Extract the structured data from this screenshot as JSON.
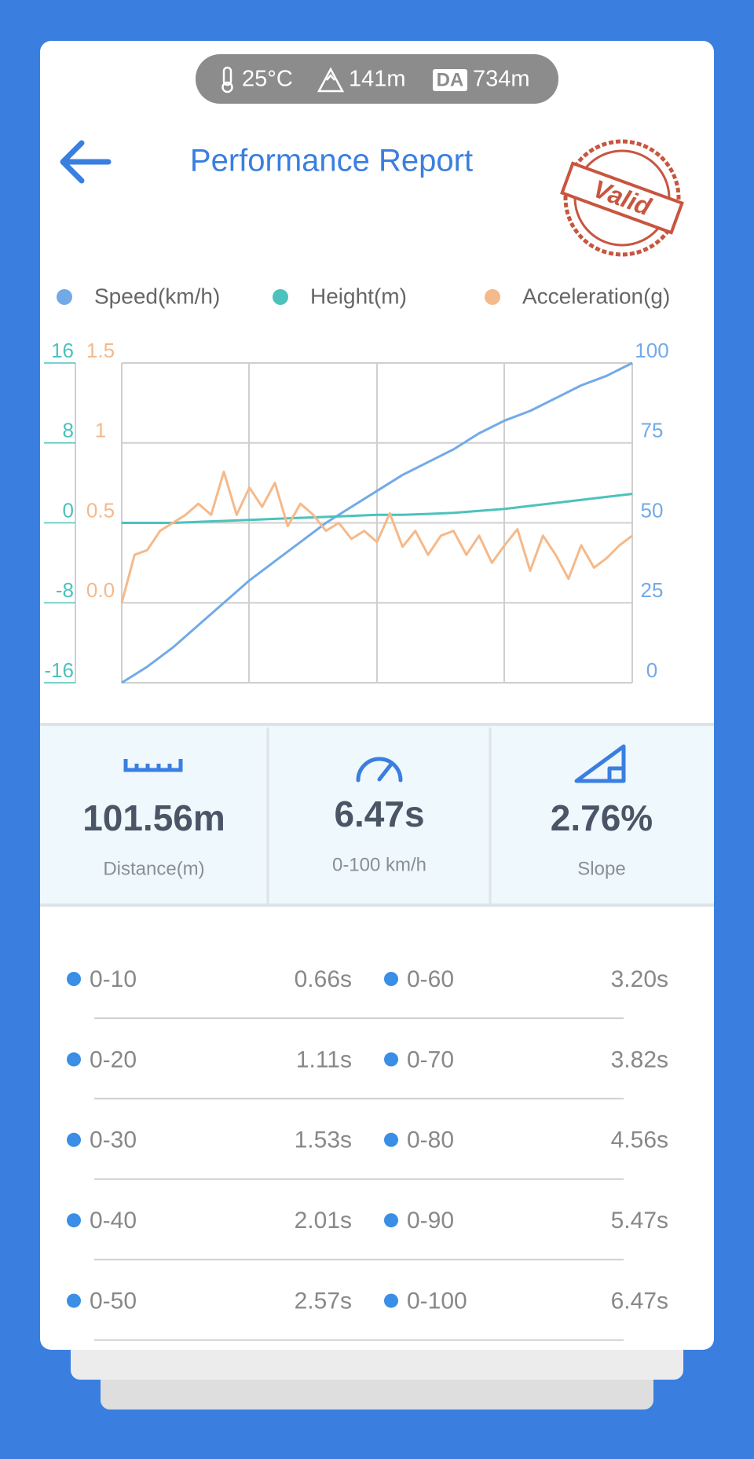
{
  "header": {
    "temperature": "25°C",
    "altitude": "141m",
    "da_badge": "DA",
    "density_altitude": "734m",
    "title": "Performance Report",
    "stamp": "Valid"
  },
  "chart_data": {
    "type": "line",
    "grid": true,
    "series": [
      {
        "name": "Speed(km/h)",
        "color": "#72aae8",
        "axis": "right",
        "ylim": [
          0,
          100
        ],
        "yticks": [
          0,
          25,
          50,
          75,
          100
        ],
        "values": [
          0,
          5,
          11,
          18,
          25,
          32,
          38,
          44,
          50,
          55,
          60,
          65,
          69,
          73,
          78,
          82,
          85,
          89,
          93,
          96,
          100
        ]
      },
      {
        "name": "Height(m)",
        "color": "#4cc2bc",
        "axis": "left",
        "ylim": [
          -16,
          16
        ],
        "yticks": [
          -16,
          -8,
          0,
          8,
          16
        ],
        "values": [
          0,
          0,
          0,
          0.1,
          0.2,
          0.3,
          0.4,
          0.5,
          0.6,
          0.7,
          0.8,
          0.8,
          0.9,
          1.0,
          1.2,
          1.4,
          1.7,
          2.0,
          2.3,
          2.6,
          2.9
        ]
      },
      {
        "name": "Acceleration(g)",
        "color": "#f5b98a",
        "axis": "left-inner",
        "ylim": [
          -0.5,
          1.5
        ],
        "yticks": [
          {
            "value": 0,
            "label": "0.0"
          },
          0.5,
          1,
          1.5
        ],
        "values": [
          0.0,
          0.3,
          0.33,
          0.45,
          0.5,
          0.55,
          0.62,
          0.55,
          0.82,
          0.55,
          0.72,
          0.6,
          0.75,
          0.48,
          0.62,
          0.55,
          0.45,
          0.5,
          0.4,
          0.45,
          0.38,
          0.56,
          0.35,
          0.45,
          0.3,
          0.42,
          0.45,
          0.3,
          0.42,
          0.25,
          0.36,
          0.46,
          0.2,
          0.42,
          0.3,
          0.15,
          0.36,
          0.22,
          0.28,
          0.36,
          0.42
        ]
      }
    ]
  },
  "stats": [
    {
      "value": "101.56m",
      "label": "Distance(m)"
    },
    {
      "value": "6.47s",
      "label": "0-100 km/h"
    },
    {
      "value": "2.76%",
      "label": "Slope"
    }
  ],
  "table": {
    "rows": [
      [
        "0-10",
        "0.66s",
        "0-60",
        "3.20s"
      ],
      [
        "0-20",
        "1.11s",
        "0-70",
        "3.82s"
      ],
      [
        "0-30",
        "1.53s",
        "0-80",
        "4.56s"
      ],
      [
        "0-40",
        "2.01s",
        "0-90",
        "5.47s"
      ],
      [
        "0-50",
        "2.57s",
        "0-100",
        "6.47s"
      ]
    ]
  }
}
